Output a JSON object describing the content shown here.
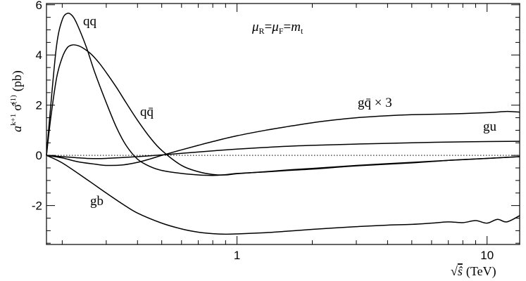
{
  "chart_data": {
    "type": "line",
    "title": "",
    "annotation_text": "μR=μF=mt",
    "annotation": {
      "mu_r": "μ",
      "r_sub": "R",
      "eq1": "=",
      "mu_f": "μ",
      "f_sub": "F",
      "eq2": "=",
      "m": "m",
      "t_sub": "t"
    },
    "ylabel": {
      "text": "a^{k+1} σ̂^{(1)} (pb)",
      "a": "a",
      "sup": "k+1",
      "sigma": "σ̂",
      "sigma_sup": "(1)",
      "unit": "(pb)"
    },
    "xlabel": {
      "text": "√ŝ (TeV)",
      "root": "√",
      "s": "ŝ",
      "unit": "(TeV)"
    },
    "x_scale": "log",
    "xlim": [
      0.173,
      13.5
    ],
    "ylim": [
      -3.55,
      6.05
    ],
    "x_tick_labels": [
      "1",
      "10"
    ],
    "x_major_ticks": [
      1,
      10
    ],
    "x_minor_ticks": [
      0.2,
      0.3,
      0.4,
      0.5,
      0.6,
      0.7,
      0.8,
      0.9,
      2,
      3,
      4,
      5,
      6,
      7,
      8,
      9
    ],
    "y_tick_labels": [
      "6",
      "4",
      "2",
      "0",
      "-2"
    ],
    "y_major_ticks": [
      6,
      4,
      2,
      0,
      -2
    ],
    "zero_line": "dotted",
    "series": [
      {
        "name": "qq",
        "color": "#000000",
        "x": [
          0.173,
          0.18,
          0.19,
          0.2,
          0.21,
          0.22,
          0.23,
          0.25,
          0.27,
          0.3,
          0.33,
          0.36,
          0.4,
          0.45,
          0.5,
          0.6,
          0.7,
          0.8,
          0.9,
          1.0,
          1.3,
          1.6,
          2,
          3,
          5,
          7,
          10,
          13.5
        ],
        "y": [
          0,
          2.0,
          4.4,
          5.4,
          5.66,
          5.55,
          5.2,
          4.3,
          3.3,
          2.1,
          1.1,
          0.4,
          -0.15,
          -0.45,
          -0.6,
          -0.72,
          -0.78,
          -0.8,
          -0.77,
          -0.72,
          -0.66,
          -0.6,
          -0.55,
          -0.42,
          -0.3,
          -0.2,
          -0.12,
          -0.05
        ]
      },
      {
        "name": "qq̄",
        "color": "#000000",
        "x": [
          0.173,
          0.18,
          0.19,
          0.2,
          0.21,
          0.22,
          0.23,
          0.24,
          0.26,
          0.28,
          0.3,
          0.33,
          0.36,
          0.4,
          0.45,
          0.5,
          0.6,
          0.7,
          0.8,
          0.9,
          1.0,
          1.3,
          1.6,
          2,
          3,
          5,
          7,
          10,
          13.5
        ],
        "y": [
          0,
          1.5,
          3.1,
          3.9,
          4.3,
          4.4,
          4.38,
          4.3,
          4.05,
          3.7,
          3.3,
          2.7,
          2.1,
          1.4,
          0.7,
          0.2,
          -0.4,
          -0.65,
          -0.76,
          -0.78,
          -0.73,
          -0.65,
          -0.58,
          -0.52,
          -0.4,
          -0.28,
          -0.2,
          -0.12,
          -0.05
        ]
      },
      {
        "name": "gq̄ × 3",
        "color": "#000000",
        "x": [
          0.173,
          0.2,
          0.23,
          0.27,
          0.3,
          0.35,
          0.4,
          0.45,
          0.5,
          0.6,
          0.7,
          0.8,
          1.0,
          1.3,
          1.6,
          2,
          2.5,
          3,
          4,
          5,
          7,
          10,
          12,
          13.5
        ],
        "y": [
          0,
          -0.1,
          -0.25,
          -0.35,
          -0.4,
          -0.38,
          -0.28,
          -0.14,
          0.0,
          0.22,
          0.4,
          0.55,
          0.78,
          1.0,
          1.15,
          1.3,
          1.42,
          1.5,
          1.58,
          1.62,
          1.65,
          1.7,
          1.75,
          1.72
        ]
      },
      {
        "name": "gu",
        "color": "#000000",
        "x": [
          0.173,
          0.2,
          0.25,
          0.3,
          0.4,
          0.5,
          0.6,
          0.8,
          1.0,
          1.5,
          2,
          3,
          5,
          7,
          10,
          13.5
        ],
        "y": [
          0,
          -0.05,
          -0.12,
          -0.12,
          -0.05,
          0.02,
          0.08,
          0.18,
          0.25,
          0.35,
          0.4,
          0.45,
          0.5,
          0.53,
          0.55,
          0.56
        ]
      },
      {
        "name": "gb",
        "color": "#000000",
        "x": [
          0.173,
          0.2,
          0.25,
          0.3,
          0.35,
          0.4,
          0.5,
          0.6,
          0.7,
          0.8,
          0.9,
          1.0,
          1.3,
          1.6,
          2,
          3,
          4,
          5,
          6,
          7,
          8,
          9,
          10,
          11,
          12,
          13.5
        ],
        "y": [
          0,
          -0.3,
          -0.95,
          -1.5,
          -1.95,
          -2.3,
          -2.7,
          -2.93,
          -3.06,
          -3.12,
          -3.14,
          -3.13,
          -3.08,
          -3.02,
          -2.95,
          -2.84,
          -2.78,
          -2.75,
          -2.7,
          -2.65,
          -2.68,
          -2.6,
          -2.7,
          -2.55,
          -2.65,
          -2.4
        ]
      }
    ],
    "curve_labels": [
      {
        "key": "qq",
        "text": "qq"
      },
      {
        "key": "qqbar",
        "text": "qq̄"
      },
      {
        "key": "gqbar",
        "text": "gq̄ × 3"
      },
      {
        "key": "gu",
        "text": "gu"
      },
      {
        "key": "gb",
        "text": "gb"
      }
    ],
    "grid": false,
    "legend": "none"
  }
}
